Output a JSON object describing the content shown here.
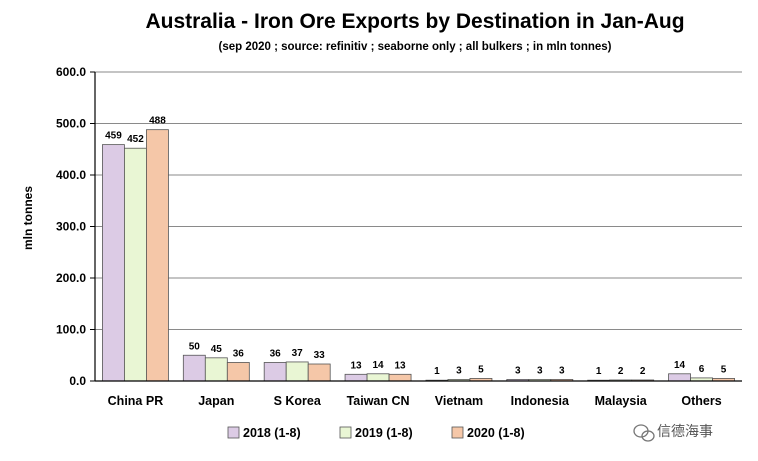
{
  "chart_data": {
    "type": "bar",
    "title": "Australia - Iron Ore Exports by Destination in Jan-Aug",
    "subtitle": "(sep 2020 ; source: refinitiv ; seaborne only ; all bulkers ; in mln tonnes)",
    "ylabel": "mln tonnes",
    "xlabel": "",
    "ylim": [
      0,
      600
    ],
    "yticks": [
      0,
      100,
      200,
      300,
      400,
      500,
      600
    ],
    "ytick_labels": [
      "0.0",
      "100.0",
      "200.0",
      "300.0",
      "400.0",
      "500.0",
      "600.0"
    ],
    "grid": true,
    "legend_position": "bottom",
    "categories": [
      "China PR",
      "Japan",
      "S Korea",
      "Taiwan CN",
      "Vietnam",
      "Indonesia",
      "Malaysia",
      "Others"
    ],
    "series": [
      {
        "name": "2018 (1-8)",
        "color": "#dccbe5",
        "values": [
          459,
          50,
          36,
          13,
          1,
          3,
          1,
          14
        ]
      },
      {
        "name": "2019 (1-8)",
        "color": "#e9f6d4",
        "values": [
          452,
          45,
          37,
          14,
          3,
          3,
          2,
          6
        ]
      },
      {
        "name": "2020 (1-8)",
        "color": "#f5c7a8",
        "values": [
          488,
          36,
          33,
          13,
          5,
          3,
          2,
          5
        ]
      }
    ]
  },
  "watermark": {
    "text": "信德海事"
  }
}
